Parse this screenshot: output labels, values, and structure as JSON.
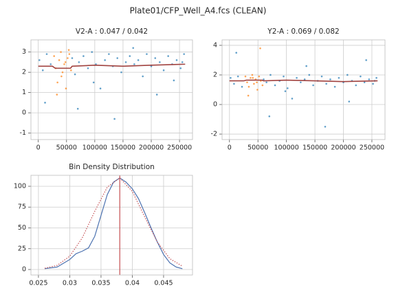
{
  "title": "Plate01/CFP_Well_A4.fcs (CLEAN)",
  "chart_data": [
    {
      "type": "scatter",
      "title": "V2-A : 0.047 / 0.042",
      "xlim": [
        -13000,
        273000
      ],
      "xticks": [
        0,
        50000,
        100000,
        150000,
        200000,
        250000
      ],
      "ylim": [
        -1.32,
        3.6
      ],
      "yticks": [
        -1,
        0,
        1,
        2,
        3
      ],
      "grid": true,
      "series": [
        {
          "kind": "scatter",
          "color": "#1f77b4",
          "x": [
            2000,
            8000,
            15000,
            22000,
            60000,
            65000,
            72000,
            80000,
            88000,
            95000,
            102000,
            110000,
            118000,
            125000,
            132000,
            140000,
            147000,
            155000,
            162000,
            170000,
            177000,
            185000,
            192000,
            200000,
            207000,
            215000,
            222000,
            230000,
            237000,
            245000,
            252000,
            258000,
            12000,
            70000,
            98000,
            135000,
            168000,
            210000,
            240000,
            255000
          ],
          "values": [
            2.6,
            2.1,
            2.9,
            2.4,
            2.7,
            1.9,
            2.5,
            2.8,
            2.2,
            3.0,
            2.4,
            1.2,
            2.6,
            2.9,
            2.3,
            2.7,
            2.0,
            2.5,
            2.8,
            2.4,
            2.6,
            1.8,
            2.9,
            2.3,
            2.7,
            2.5,
            2.1,
            2.8,
            2.4,
            2.6,
            2.2,
            2.9,
            0.5,
            0.2,
            1.5,
            -0.3,
            3.2,
            0.9,
            1.6,
            2.5
          ]
        },
        {
          "kind": "scatter",
          "color": "#ff7f0e",
          "x": [
            28000,
            31000,
            34000,
            37000,
            40000,
            43000,
            46000,
            49000,
            52000,
            55000,
            58000,
            33000,
            41000,
            48000,
            54000
          ],
          "values": [
            2.8,
            2.2,
            1.5,
            2.6,
            3.0,
            2.0,
            2.4,
            1.2,
            2.7,
            2.9,
            2.1,
            0.9,
            1.8,
            2.5,
            3.1
          ]
        },
        {
          "kind": "line",
          "color": "#a0413e",
          "x": [
            0,
            25000,
            30000,
            57000,
            60000,
            100000,
            150000,
            200000,
            260000
          ],
          "values": [
            2.3,
            2.3,
            2.2,
            2.2,
            2.3,
            2.35,
            2.3,
            2.35,
            2.4
          ]
        }
      ]
    },
    {
      "type": "scatter",
      "title": "Y2-A : 0.069 / 0.082",
      "xlim": [
        -13000,
        273000
      ],
      "xticks": [
        0,
        50000,
        100000,
        150000,
        200000,
        250000
      ],
      "ylim": [
        -2.37,
        4.37
      ],
      "yticks": [
        -2,
        0,
        2,
        4
      ],
      "grid": true,
      "series": [
        {
          "kind": "scatter",
          "color": "#1f77b4",
          "x": [
            2000,
            8000,
            15000,
            22000,
            60000,
            65000,
            72000,
            80000,
            88000,
            95000,
            102000,
            110000,
            118000,
            125000,
            132000,
            140000,
            147000,
            155000,
            162000,
            170000,
            177000,
            185000,
            192000,
            200000,
            207000,
            215000,
            222000,
            230000,
            237000,
            245000,
            252000,
            258000,
            12000,
            70000,
            98000,
            135000,
            168000,
            210000,
            240000,
            255000
          ],
          "values": [
            1.8,
            1.4,
            1.9,
            1.2,
            1.7,
            1.5,
            2.0,
            1.3,
            1.6,
            1.9,
            1.1,
            0.4,
            1.8,
            1.5,
            1.7,
            2.0,
            1.3,
            1.6,
            1.9,
            1.4,
            1.7,
            1.2,
            1.8,
            1.5,
            2.0,
            1.6,
            1.3,
            1.9,
            1.5,
            1.7,
            1.4,
            1.8,
            3.5,
            -0.8,
            0.9,
            2.6,
            -1.5,
            0.2,
            3.0,
            1.6
          ]
        },
        {
          "kind": "scatter",
          "color": "#ff7f0e",
          "x": [
            28000,
            31000,
            34000,
            37000,
            40000,
            43000,
            46000,
            49000,
            52000,
            55000,
            58000,
            33000,
            41000,
            48000,
            54000
          ],
          "values": [
            1.9,
            1.5,
            1.2,
            1.8,
            2.0,
            1.4,
            1.7,
            1.0,
            1.9,
            1.6,
            1.3,
            0.6,
            1.8,
            1.5,
            3.8
          ]
        },
        {
          "kind": "line",
          "color": "#a0413e",
          "x": [
            0,
            25000,
            30000,
            57000,
            60000,
            100000,
            150000,
            200000,
            260000
          ],
          "values": [
            1.6,
            1.6,
            1.65,
            1.65,
            1.6,
            1.65,
            1.6,
            1.55,
            1.6
          ]
        }
      ]
    },
    {
      "type": "line",
      "title": "Bin Density Distribution",
      "xlim": [
        0.0238,
        0.04962
      ],
      "xticks": [
        0.025,
        0.03,
        0.035,
        0.04,
        0.045
      ],
      "ylim": [
        -6.6,
        113.2
      ],
      "yticks": [
        0,
        25,
        50,
        75,
        100
      ],
      "grid": true,
      "series": [
        {
          "kind": "line",
          "color": "#4c72b0",
          "x": [
            0.026,
            0.028,
            0.03,
            0.031,
            0.032,
            0.033,
            0.034,
            0.035,
            0.036,
            0.037,
            0.038,
            0.039,
            0.04,
            0.041,
            0.042,
            0.043,
            0.044,
            0.045,
            0.046,
            0.047,
            0.048
          ],
          "values": [
            1,
            3,
            12,
            19,
            22,
            26,
            40,
            65,
            90,
            105,
            110,
            105,
            97,
            85,
            68,
            50,
            33,
            18,
            8,
            3,
            1
          ]
        },
        {
          "kind": "line",
          "color": "#c44e52",
          "linestyle": "dotted",
          "x": [
            0.026,
            0.028,
            0.03,
            0.032,
            0.034,
            0.036,
            0.038,
            0.04,
            0.042,
            0.044,
            0.046,
            0.048
          ],
          "values": [
            1.5,
            5,
            16,
            38,
            70,
            99,
            110,
            94,
            63,
            33,
            13,
            4
          ]
        }
      ],
      "vlines": [
        {
          "value": 0.038,
          "color": "#c44e52"
        }
      ]
    }
  ]
}
